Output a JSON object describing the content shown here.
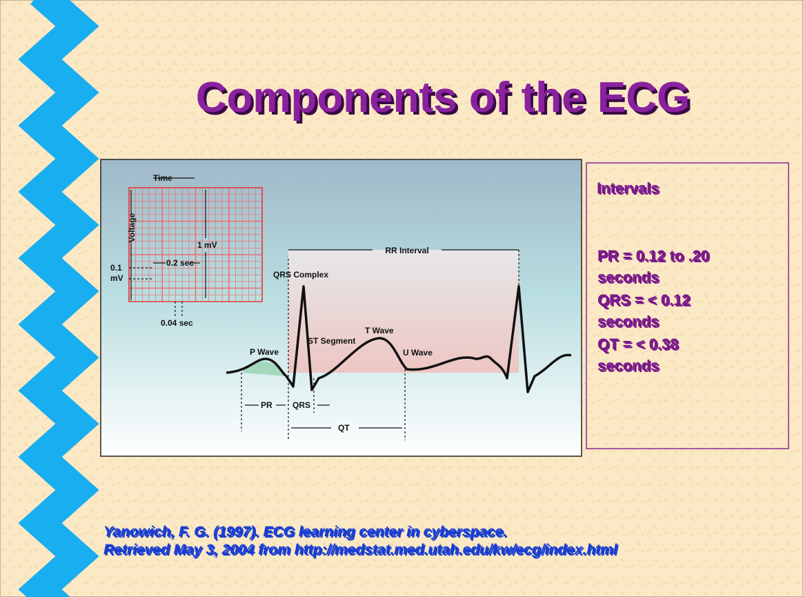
{
  "title": "Components of the ECG",
  "diagram": {
    "time": "Time",
    "voltage": "Voltage",
    "amplitude": "1 mV",
    "small_voltage": "0.1",
    "small_voltage_unit": "mV",
    "large_box": "0.2 sec",
    "small_box": "0.04 sec",
    "rr_interval": "RR Interval",
    "qrs_complex": "QRS Complex",
    "p_wave": "P Wave",
    "st_segment": "ST Segment",
    "t_wave": "T Wave",
    "u_wave": "U Wave",
    "pr": "PR",
    "qrs": "QRS",
    "qt": "QT"
  },
  "intervals": {
    "heading": "Intervals",
    "items": [
      [
        "PR = 0.12 to .20",
        "seconds"
      ],
      [
        "QRS = < 0.12",
        "seconds"
      ],
      [
        "QT = < 0.38",
        "seconds"
      ]
    ]
  },
  "citation": [
    "Yanowich, F. G. (1997). ECG learning center in cyberspace.",
    "Retrieved May 3, 2004 from http://medstat.med.utah.edu/kw/ecg/index.html"
  ]
}
